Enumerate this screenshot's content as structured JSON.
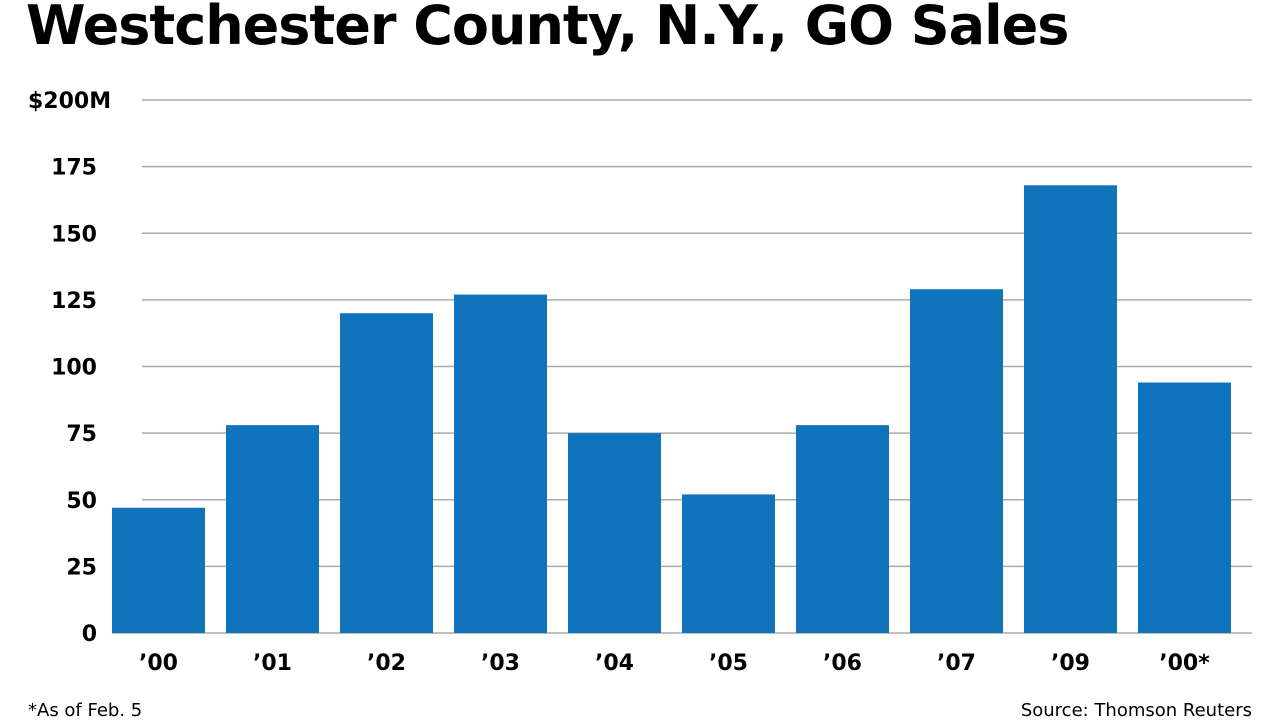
{
  "chart_data": {
    "type": "bar",
    "title": "Westchester County, N.Y., GO Sales",
    "categories": [
      "’00",
      "’01",
      "’02",
      "’03",
      "’04",
      "’05",
      "’06",
      "’07",
      "’09",
      "’00*"
    ],
    "values": [
      47,
      78,
      120,
      127,
      75,
      52,
      78,
      129,
      168,
      94
    ],
    "ylim": [
      0,
      200
    ],
    "yticks": [
      0,
      25,
      50,
      75,
      100,
      125,
      150,
      175,
      200
    ],
    "ytick_labels": [
      "0",
      "25",
      "50",
      "75",
      "100",
      "125",
      "150",
      "175",
      "$200M"
    ],
    "grid": true,
    "bar_color": "#1273bd",
    "grid_color": "#aaaaaa",
    "footnote": "*As of Feb. 5",
    "source": "Source: Thomson Reuters"
  }
}
